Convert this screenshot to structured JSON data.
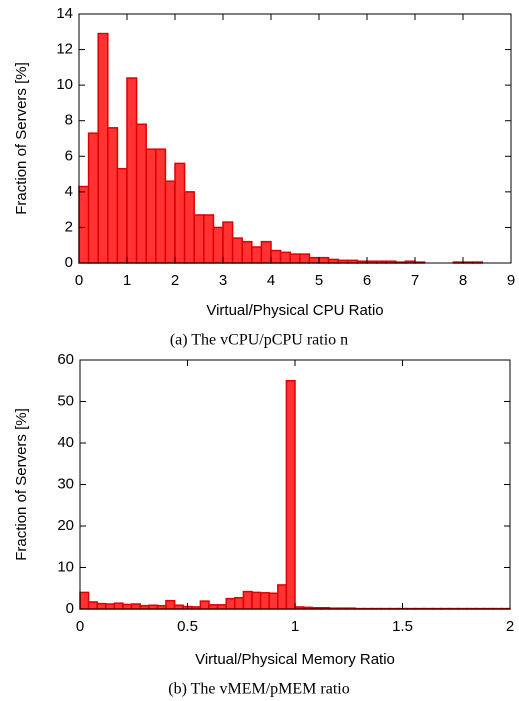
{
  "chart_data": [
    {
      "type": "histogram",
      "caption": "(a) The vCPU/pCPU ratio n",
      "xlabel": "Virtual/Physical CPU Ratio",
      "ylabel": "Fraction of Servers [%]",
      "color": "#ff3333",
      "edgecolor": "#e00000",
      "bins": [
        0,
        0.2,
        0.4,
        0.6,
        0.8,
        1.0,
        1.2,
        1.4,
        1.6,
        1.8,
        2.0,
        2.2,
        2.4,
        2.6,
        2.8,
        3.0,
        3.2,
        3.4,
        3.6,
        3.8,
        4.0,
        4.2,
        4.4,
        4.6,
        4.8,
        5.0,
        5.2,
        5.4,
        5.6,
        5.8,
        6.0,
        6.2,
        6.4,
        6.6,
        6.8,
        7.0,
        7.2,
        7.4,
        7.6,
        7.8,
        8.0,
        8.2,
        8.4
      ],
      "values": [
        4.3,
        7.3,
        12.9,
        7.6,
        5.3,
        10.4,
        7.8,
        6.4,
        6.4,
        4.6,
        5.6,
        4.0,
        2.7,
        2.7,
        2.0,
        2.3,
        1.4,
        1.2,
        0.9,
        1.2,
        0.7,
        0.6,
        0.5,
        0.5,
        0.3,
        0.3,
        0.2,
        0.15,
        0.15,
        0.1,
        0.1,
        0.1,
        0.1,
        0.05,
        0.1,
        0.05,
        0,
        0,
        0,
        0.05,
        0.05,
        0.05
      ],
      "xlim": [
        0,
        9
      ],
      "xticks": [
        0,
        1,
        2,
        3,
        4,
        5,
        6,
        7,
        8,
        9
      ],
      "ylim": [
        0,
        14
      ],
      "yticks": [
        0,
        2,
        4,
        6,
        8,
        10,
        12,
        14
      ]
    },
    {
      "type": "histogram",
      "caption": "(b) The vMEM/pMEM ratio",
      "xlabel": "Virtual/Physical Memory Ratio",
      "ylabel": "Fraction of Servers [%]",
      "color": "#ff3333",
      "edgecolor": "#e00000",
      "bins": [
        0,
        0.04,
        0.08,
        0.12,
        0.16,
        0.2,
        0.24,
        0.28,
        0.32,
        0.36,
        0.4,
        0.44,
        0.48,
        0.52,
        0.56,
        0.6,
        0.64,
        0.68,
        0.72,
        0.76,
        0.8,
        0.84,
        0.88,
        0.92,
        0.96,
        1.0,
        1.04,
        1.08,
        1.12,
        1.16,
        1.2,
        1.24,
        1.28,
        1.32,
        1.36,
        1.4,
        1.44,
        1.48,
        1.52,
        1.56,
        1.6,
        1.64,
        1.68,
        1.72,
        1.76,
        1.8,
        1.84,
        1.88,
        1.92,
        1.96,
        2.0
      ],
      "values": [
        4.0,
        1.7,
        1.3,
        1.2,
        1.4,
        1.1,
        1.2,
        0.8,
        0.9,
        0.8,
        2.0,
        0.9,
        0.6,
        0.5,
        1.9,
        1.0,
        1.0,
        2.5,
        2.7,
        4.2,
        4.0,
        3.9,
        3.8,
        5.8,
        55,
        0.5,
        0.4,
        0.3,
        0.3,
        0.2,
        0.2,
        0.2,
        0.1,
        0.1,
        0.1,
        0.1,
        0.1,
        0.1,
        0.1,
        0.1,
        0.1,
        0.1,
        0.1,
        0.1,
        0.1,
        0.1,
        0.1,
        0.1,
        0.1,
        0.1
      ],
      "xlim": [
        0,
        2
      ],
      "xticks": [
        0,
        0.5,
        1,
        1.5,
        2
      ],
      "ylim": [
        0,
        60
      ],
      "yticks": [
        0,
        10,
        20,
        30,
        40,
        50,
        60
      ]
    }
  ]
}
